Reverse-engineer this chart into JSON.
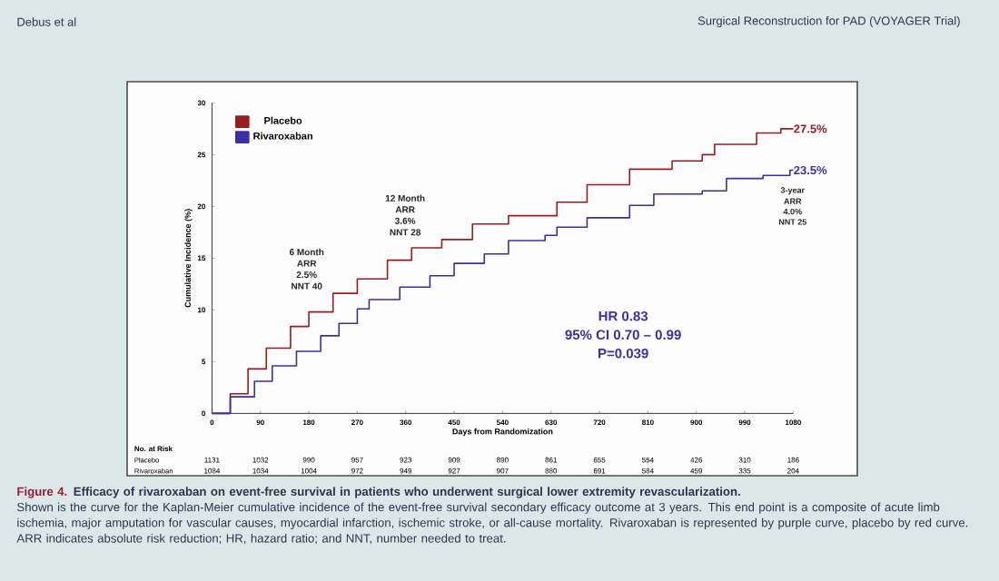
{
  "chart_data": {
    "type": "step",
    "xlabel": "Days from Randomization",
    "ylabel": "Cumulative Incidence (%)",
    "xlim": [
      0,
      1080
    ],
    "xticks": [
      0,
      90,
      180,
      270,
      360,
      450,
      540,
      630,
      720,
      810,
      900,
      990,
      1080
    ],
    "ylim": [
      0,
      30
    ],
    "yticks": [
      0,
      5,
      10,
      15,
      20,
      25,
      30
    ],
    "legend": "top left",
    "series": [
      {
        "name": "Placebo",
        "color": "#9b1b1f",
        "x": [
          0,
          34,
          67,
          101,
          146,
          180,
          225,
          270,
          326,
          371,
          427,
          484,
          551,
          641,
          697,
          776,
          855,
          911,
          934,
          1012,
          1057,
          1080
        ],
        "values": [
          0,
          1.9,
          4.3,
          6.3,
          8.4,
          9.8,
          11.6,
          13.0,
          14.8,
          16.0,
          16.8,
          18.3,
          19.1,
          20.4,
          22.1,
          23.6,
          24.4,
          25.0,
          26.0,
          27.1,
          27.5,
          27.5
        ]
      },
      {
        "name": "Rivaroxaban",
        "color": "#3b2fa8",
        "x": [
          0,
          34,
          79,
          112,
          157,
          202,
          236,
          270,
          292,
          349,
          405,
          450,
          506,
          551,
          619,
          641,
          697,
          776,
          821,
          911,
          956,
          1024,
          1074,
          1080
        ],
        "values": [
          0,
          1.6,
          3.1,
          4.6,
          6.0,
          7.5,
          8.7,
          10.1,
          11.0,
          12.2,
          13.3,
          14.5,
          15.4,
          16.7,
          17.2,
          18.0,
          18.9,
          20.1,
          21.2,
          21.5,
          22.7,
          23.0,
          23.5,
          23.5
        ]
      }
    ],
    "annotations": [
      "Debus et al",
      "Surgical Reconstruction for PAD (VOYAGER Trial)",
      "6 Month",
      "ARR",
      "2.5%",
      "NNT 40",
      "12 Month",
      "ARR",
      "3.6%",
      "NNT 28",
      "3-year",
      "ARR",
      "4.0%",
      "NNT 25",
      "HR 0.83",
      "95% CI 0.70 – 0.99",
      "P=0.039",
      {
        "text": "27.5%",
        "x": 1080,
        "y": 27.5
      },
      {
        "text": "23.5%",
        "x": 1080,
        "y": 23.5
      },
      "No. at Risk",
      "Placebo",
      "1131",
      "1032",
      "990",
      "957",
      "923",
      "909",
      "890",
      "861",
      "655",
      "554",
      "426",
      "310",
      "186",
      "Rivaroxaban",
      "1084",
      "1034",
      "1004",
      "972",
      "949",
      "927",
      "907",
      "880",
      "691",
      "584",
      "459",
      "335",
      "204",
      "Figure 4.",
      "Efficacy of rivaroxaban on event-free survival in patients who underwent surgical lower extremity revascularization.",
      "Shown is the curve for the Kaplan-Meier cumulative incidence of the event-free survival secondary efficacy outcome at 3 years. This end point is a composite of acute limb ischemia, major amputation for vascular causes, myocardial infarction, ischemic stroke, or all-cause mortality. Rivaroxaban is represented by purple curve, placebo by red curve. ARR indicates absolute risk reduction; HR, hazard ratio; and NNT, number needed to treat."
    ]
  }
}
